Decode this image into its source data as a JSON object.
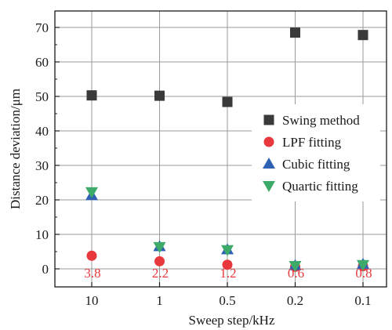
{
  "chart_data": {
    "type": "scatter",
    "categories": [
      "10",
      "1",
      "0.5",
      "0.2",
      "0.1"
    ],
    "xlabel": "Sweep step/kHz",
    "ylabel": "Distance deviation/μm",
    "ylim": [
      -5,
      75
    ],
    "yticks": [
      0,
      10,
      20,
      30,
      40,
      50,
      60,
      70
    ],
    "grid": true,
    "legend_position": "right",
    "series": [
      {
        "name": "Swing method",
        "marker": "square",
        "color": "#3a3a3a",
        "values": [
          50.3,
          50.2,
          48.4,
          68.5,
          67.8
        ]
      },
      {
        "name": "LPF fitting",
        "marker": "circle",
        "color": "#e8383d",
        "values": [
          3.8,
          2.2,
          1.2,
          0.6,
          0.8
        ]
      },
      {
        "name": "Cubic fitting",
        "marker": "triangle-up",
        "color": "#2f62b3",
        "values": [
          21.3,
          6.5,
          5.6,
          1.0,
          1.4
        ]
      },
      {
        "name": "Quartic fitting",
        "marker": "triangle-down",
        "color": "#3daa6a",
        "values": [
          22.3,
          6.4,
          5.5,
          0.9,
          1.2
        ]
      }
    ],
    "annotations": {
      "color": "#e8383d",
      "labels": [
        "3.8",
        "2.2",
        "1.2",
        "0.6",
        "0.8"
      ]
    }
  }
}
